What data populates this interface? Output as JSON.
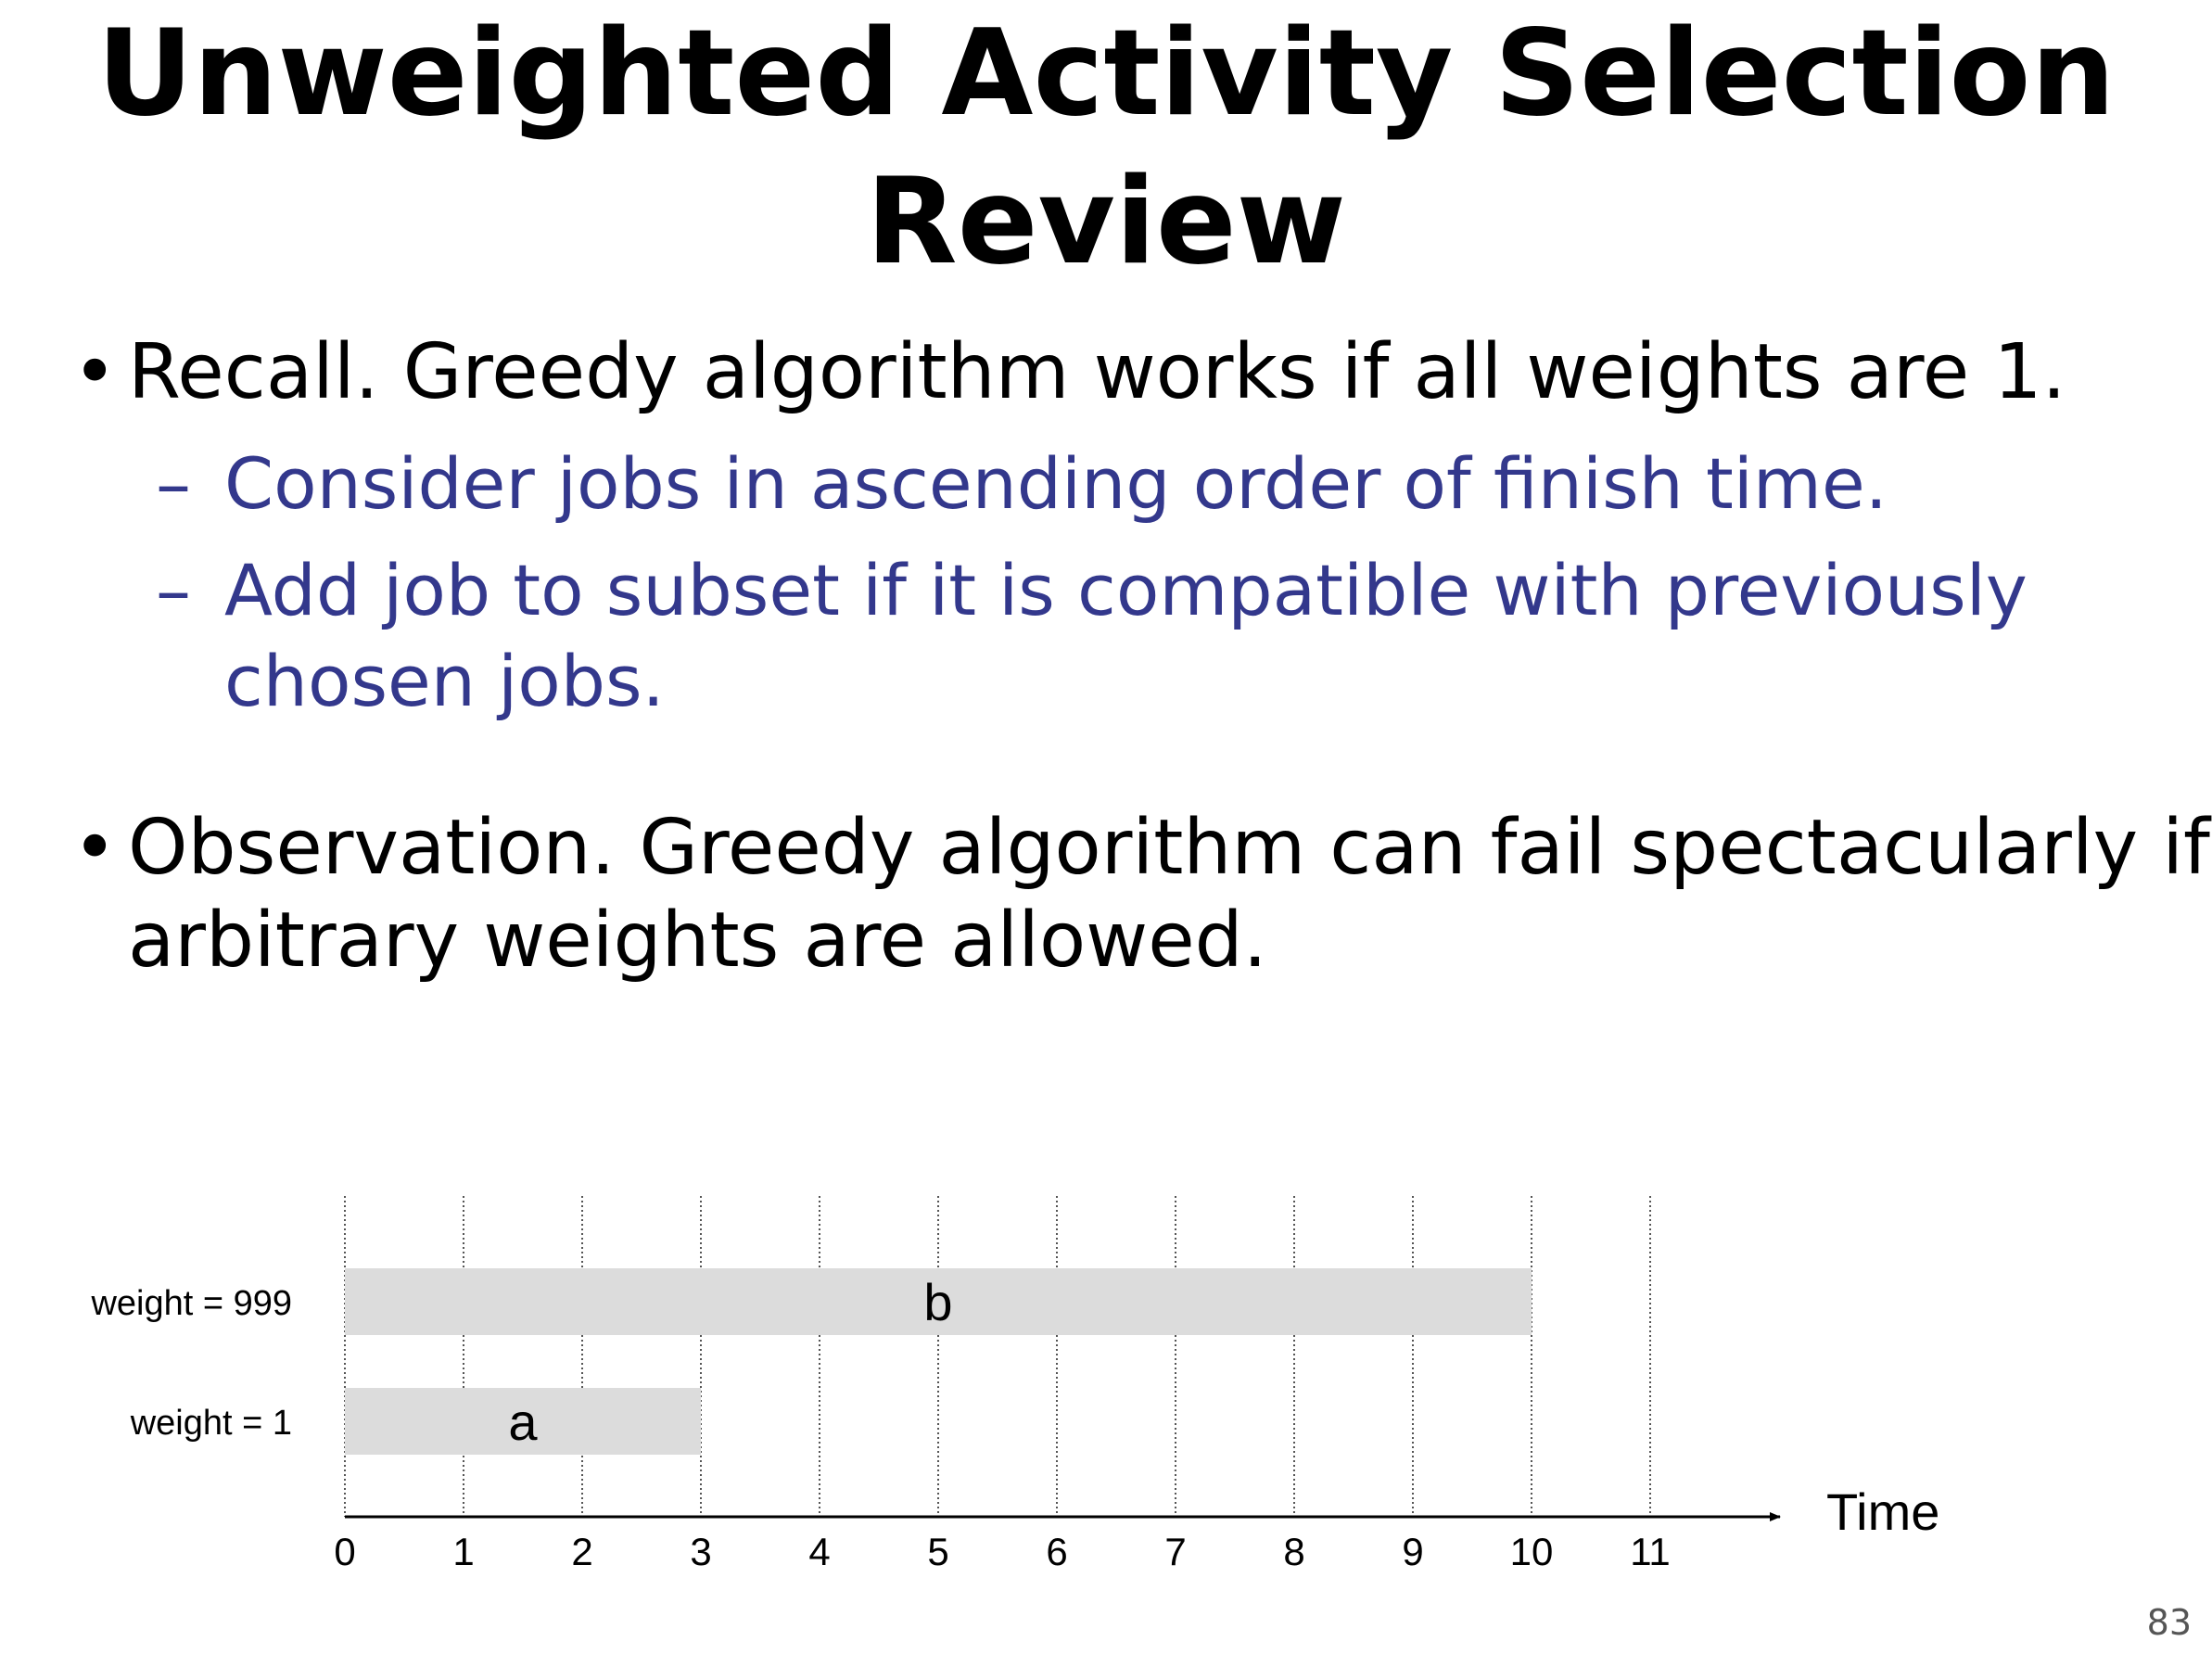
{
  "title": {
    "line1": "Unweighted Activity Selection",
    "line2": "Review"
  },
  "bullets": [
    {
      "marker": "•",
      "lines": [
        "Recall.  Greedy algorithm works if all weights are 1."
      ]
    },
    {
      "marker": "•",
      "lines": [
        "Observation.  Greedy algorithm can fail spectacularly if",
        "arbitrary weights are allowed."
      ]
    }
  ],
  "sub_bullets": [
    {
      "marker": "–",
      "lines": [
        "Consider jobs in ascending order of finish time."
      ]
    },
    {
      "marker": "–",
      "lines": [
        "Add job to subset if it is compatible with previously",
        "chosen jobs."
      ]
    }
  ],
  "colors": {
    "text": "#000000",
    "sub_text": "#33388c",
    "job_bar": "#dcdcdc",
    "axis": "#000000",
    "gridline": "#555555"
  },
  "chart_data": {
    "type": "bar",
    "orientation": "horizontal-intervals",
    "xlabel": "Time",
    "xlim": [
      0,
      11
    ],
    "x_ticks": [
      "0",
      "1",
      "2",
      "3",
      "4",
      "5",
      "6",
      "7",
      "8",
      "9",
      "10",
      "11"
    ],
    "grid": "vertical dotted at each integer",
    "jobs": [
      {
        "name": "b",
        "weight_label": "weight = 999",
        "start": 0,
        "finish": 10
      },
      {
        "name": "a",
        "weight_label": "weight = 1",
        "start": 0,
        "finish": 3
      }
    ]
  },
  "page_number": "83"
}
